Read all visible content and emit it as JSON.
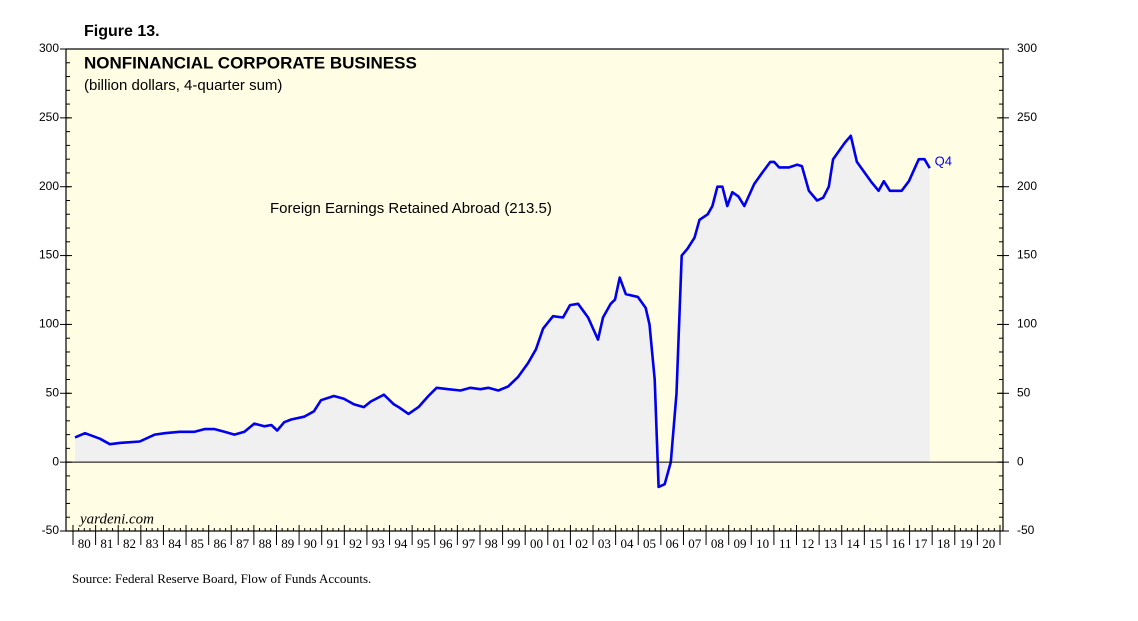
{
  "chart_data": {
    "type": "line",
    "figure_label": "Figure 13.",
    "title": "NONFINANCIAL CORPORATE BUSINESS",
    "subtitle": "(billion dollars, 4-quarter sum)",
    "annotation": "Foreign Earnings Retained Abroad (213.5)",
    "end_label": "Q4",
    "watermark": "yardeni.com",
    "source": "Source: Federal Reserve Board, Flow of Funds Accounts.",
    "series": [
      {
        "name": "Foreign Earnings Retained Abroad",
        "color": "#0000ee",
        "x": [
          1980.09,
          1980.53,
          1981.19,
          1981.63,
          1982.07,
          1982.95,
          1983.62,
          1984.06,
          1984.71,
          1985.38,
          1985.82,
          1986.26,
          1986.7,
          1987.14,
          1987.58,
          1988.02,
          1988.46,
          1988.77,
          1989.03,
          1989.34,
          1989.65,
          1990.22,
          1990.66,
          1990.97,
          1991.54,
          1991.98,
          1992.42,
          1992.86,
          1993.17,
          1993.75,
          1994.19,
          1994.4,
          1994.84,
          1995.28,
          1995.72,
          1996.08,
          1996.6,
          1997.14,
          1997.58,
          1998.02,
          1998.37,
          1998.81,
          1999.25,
          1999.69,
          2000.13,
          2000.48,
          2000.79,
          2001.23,
          2001.67,
          2001.98,
          2002.34,
          2002.78,
          2003.22,
          2003.44,
          2003.78,
          2003.97,
          2004.18,
          2004.45,
          2004.98,
          2005.33,
          2005.5,
          2005.73,
          2005.9,
          2006.17,
          2006.44,
          2006.69,
          2006.92,
          2007.18,
          2007.49,
          2007.71,
          2008.07,
          2008.28,
          2008.5,
          2008.72,
          2008.94,
          2009.16,
          2009.43,
          2009.69,
          2010.13,
          2010.48,
          2010.84,
          2011.01,
          2011.23,
          2011.67,
          2012.03,
          2012.24,
          2012.55,
          2012.91,
          2013.18,
          2013.43,
          2013.62,
          2014.14,
          2014.4,
          2014.67,
          2015.02,
          2015.33,
          2015.63,
          2015.86,
          2016.13,
          2016.43,
          2016.65,
          2016.97,
          2017.41,
          2017.66,
          2017.89
        ],
        "values": [
          18,
          21,
          17,
          13,
          14,
          15,
          20,
          21,
          22,
          22,
          24,
          24,
          22,
          20,
          22,
          28,
          26,
          27,
          23,
          29,
          31,
          33,
          37,
          45,
          48,
          46,
          42,
          40,
          44,
          49,
          42,
          40,
          35,
          40,
          48,
          54,
          53,
          52,
          54,
          53,
          54,
          52,
          55,
          62,
          72,
          82,
          97,
          106,
          105,
          114,
          115,
          105,
          89,
          105,
          115,
          118,
          134,
          122,
          120,
          112,
          100,
          60,
          -18,
          -16,
          0,
          50,
          150,
          155,
          163,
          176,
          180,
          186,
          200,
          200,
          186,
          196,
          193,
          186,
          202,
          210,
          218,
          218,
          214,
          214,
          216,
          215,
          197,
          190,
          192,
          200,
          220,
          232,
          237,
          218,
          210,
          203,
          197,
          204,
          197,
          197,
          197,
          204,
          220,
          220,
          213.5
        ]
      }
    ],
    "xlim": [
      1980,
      2021
    ],
    "xticks": [
      {
        "value": 1980,
        "label": "80"
      },
      {
        "value": 1981,
        "label": "81"
      },
      {
        "value": 1982,
        "label": "82"
      },
      {
        "value": 1983,
        "label": "83"
      },
      {
        "value": 1984,
        "label": "84"
      },
      {
        "value": 1985,
        "label": "85"
      },
      {
        "value": 1986,
        "label": "86"
      },
      {
        "value": 1987,
        "label": "87"
      },
      {
        "value": 1988,
        "label": "88"
      },
      {
        "value": 1989,
        "label": "89"
      },
      {
        "value": 1990,
        "label": "90"
      },
      {
        "value": 1991,
        "label": "91"
      },
      {
        "value": 1992,
        "label": "92"
      },
      {
        "value": 1993,
        "label": "93"
      },
      {
        "value": 1994,
        "label": "94"
      },
      {
        "value": 1995,
        "label": "95"
      },
      {
        "value": 1996,
        "label": "96"
      },
      {
        "value": 1997,
        "label": "97"
      },
      {
        "value": 1998,
        "label": "98"
      },
      {
        "value": 1999,
        "label": "99"
      },
      {
        "value": 2000,
        "label": "00"
      },
      {
        "value": 2001,
        "label": "01"
      },
      {
        "value": 2002,
        "label": "02"
      },
      {
        "value": 2003,
        "label": "03"
      },
      {
        "value": 2004,
        "label": "04"
      },
      {
        "value": 2005,
        "label": "05"
      },
      {
        "value": 2006,
        "label": "06"
      },
      {
        "value": 2007,
        "label": "07"
      },
      {
        "value": 2008,
        "label": "08"
      },
      {
        "value": 2009,
        "label": "09"
      },
      {
        "value": 2010,
        "label": "10"
      },
      {
        "value": 2011,
        "label": "11"
      },
      {
        "value": 2012,
        "label": "12"
      },
      {
        "value": 2013,
        "label": "13"
      },
      {
        "value": 2014,
        "label": "14"
      },
      {
        "value": 2015,
        "label": "15"
      },
      {
        "value": 2016,
        "label": "16"
      },
      {
        "value": 2017,
        "label": "17"
      },
      {
        "value": 2018,
        "label": "18"
      },
      {
        "value": 2019,
        "label": "19"
      },
      {
        "value": 2020,
        "label": "20"
      }
    ],
    "ylim": [
      -50,
      300
    ],
    "yticks": [
      -50,
      0,
      50,
      100,
      150,
      200,
      250,
      300
    ],
    "y2lim": [
      -50,
      300
    ],
    "y2ticks": [
      -50,
      0,
      50,
      100,
      150,
      200,
      250,
      300
    ],
    "background": "#fffde3",
    "area_color": "#f0f0f0"
  }
}
